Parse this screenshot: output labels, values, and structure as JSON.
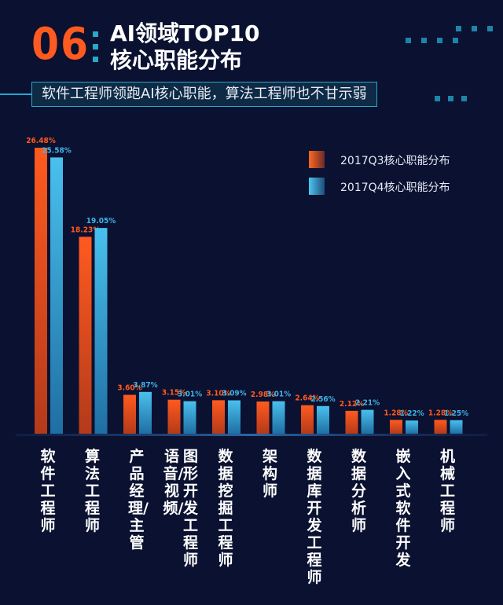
{
  "header": {
    "section_number": "06",
    "title_line1": "AI领域TOP10",
    "title_line2": "核心职能分布",
    "subtitle": "软件工程师领跑AI核心职能，算法工程师也不甘示弱"
  },
  "colors": {
    "q3": "#ff5a1f",
    "q4": "#3fb4e6",
    "background": "#0b1130",
    "accent": "#29a6cc"
  },
  "chart_data": {
    "type": "bar",
    "categories": [
      "软件工程师",
      "算法工程师",
      "产品经理/主管",
      "语音/视频/图形开发工程师",
      "数据挖掘工程师",
      "架构师",
      "数据库开发工程师",
      "数据分析师",
      "嵌入式软件开发",
      "机械工程师"
    ],
    "x_tick_lines": [
      [
        "软件工程师"
      ],
      [
        "算法工程师"
      ],
      [
        "产品经理/主管"
      ],
      [
        "语音/视频/",
        "图形开发工程师"
      ],
      [
        "数据挖掘工程师"
      ],
      [
        "架构师"
      ],
      [
        "数据库开发工程师"
      ],
      [
        "数据分析师"
      ],
      [
        "嵌入式软件开发"
      ],
      [
        "机械工程师"
      ]
    ],
    "series": [
      {
        "name": "2017Q3核心职能分布",
        "values": [
          26.48,
          18.23,
          3.6,
          3.15,
          3.1,
          2.98,
          2.64,
          2.12,
          1.28,
          1.28
        ],
        "labels": [
          "26.48%",
          "18.23%",
          "3.60%",
          "3.15%",
          "3.10%",
          "2.98%",
          "2.64%",
          "2.12%",
          "1.28%",
          "1.28%"
        ]
      },
      {
        "name": "2017Q4核心职能分布",
        "values": [
          25.58,
          19.05,
          3.87,
          3.01,
          3.09,
          3.01,
          2.56,
          2.21,
          1.22,
          1.25
        ],
        "labels": [
          "25.58%",
          "19.05%",
          "3.87%",
          "3.01%",
          "3.09%",
          "3.01%",
          "2.56%",
          "2.21%",
          "1.22%",
          "1.25%"
        ]
      }
    ],
    "legend_position": "top-right",
    "grid": false,
    "ylim": [
      0,
      28
    ]
  }
}
